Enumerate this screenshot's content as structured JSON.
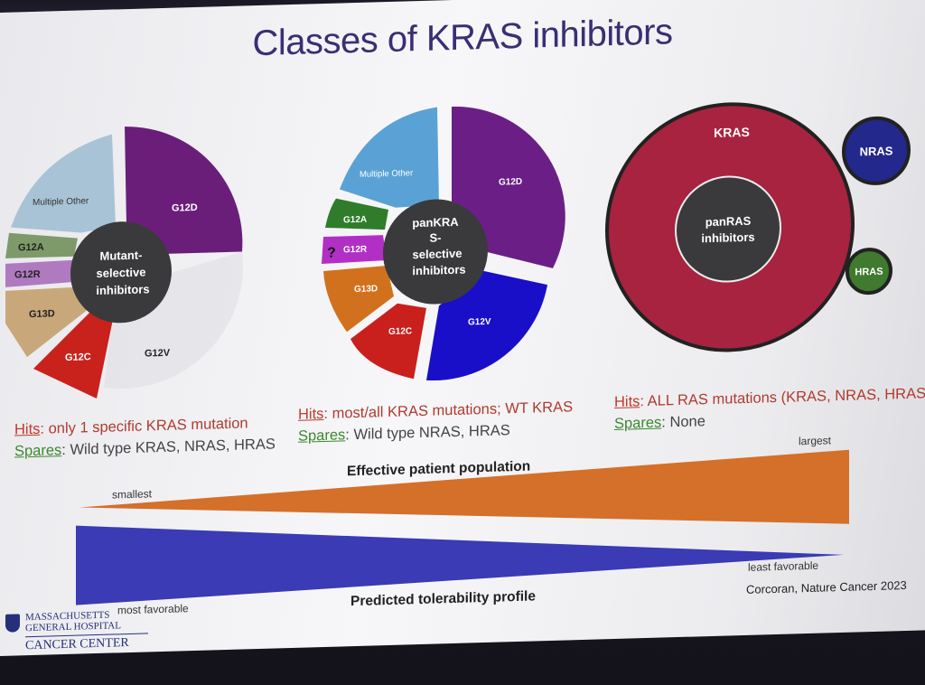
{
  "slide": {
    "title": "Classes of KRAS inhibitors"
  },
  "panel1": {
    "center": [
      "Mutant-",
      "selective",
      "inhibitors"
    ],
    "segments": [
      {
        "label": "G12D",
        "color": "#6a1e7a"
      },
      {
        "label": "G12V",
        "color": "#dcdce2"
      },
      {
        "label": "G12C",
        "color": "#c9221c"
      },
      {
        "label": "G13D",
        "color": "#c8a87a"
      },
      {
        "label": "G12R",
        "color": "#b07ac0"
      },
      {
        "label": "G12A",
        "color": "#7e9a6a"
      },
      {
        "label": "Multiple Other",
        "color": "#a9c3d6"
      }
    ],
    "hits_key": "Hits",
    "hits_value": ": only 1 specific KRAS mutation",
    "spares_key": "Spares",
    "spares_value": ": Wild type KRAS, NRAS, HRAS"
  },
  "panel2": {
    "center": [
      "panKRA",
      "S-",
      "selective",
      "inhibitors"
    ],
    "segments": [
      {
        "label": "G12D",
        "color": "#6b1f86"
      },
      {
        "label": "G12V",
        "color": "#1a0fc8"
      },
      {
        "label": "G12C",
        "color": "#c9201d"
      },
      {
        "label": "G13D",
        "color": "#d2711d"
      },
      {
        "label": "G12R",
        "color": "#b22fc6"
      },
      {
        "label": "G12A",
        "color": "#2f7d2a"
      },
      {
        "label": "Multiple Other",
        "color": "#5aa2d6"
      }
    ],
    "question_mark": "?",
    "hits_key": "Hits",
    "hits_value": ": most/all KRAS mutations; WT KRAS",
    "spares_key": "Spares",
    "spares_value": ": Wild type NRAS, HRAS"
  },
  "panel3": {
    "outer_label": "KRAS",
    "center": [
      "panRAS",
      "inhibitors"
    ],
    "nras": "NRAS",
    "hras": "HRAS",
    "colors": {
      "kras": "#a8233f",
      "nras": "#22288c",
      "hras": "#3f7a2e",
      "center": "#3a3a3c"
    },
    "hits_key": "Hits",
    "hits_value": ": ALL RAS mutations (KRAS, NRAS, HRAS",
    "spares_key": "Spares",
    "spares_value": ": None"
  },
  "population_axis": {
    "label": "Effective patient population",
    "min_label": "smallest",
    "max_label": "largest",
    "color": "#d4702a"
  },
  "tolerability_axis": {
    "label": "Predicted tolerability profile",
    "min_label": "most favorable",
    "max_label": "least favorable",
    "color": "#3b3bb5"
  },
  "footer": {
    "logo_line1": "MASSACHUSETTS",
    "logo_line2": "GENERAL HOSPITAL",
    "logo_line3": "CANCER CENTER",
    "citation": "Corcoran, Nature Cancer 2023"
  }
}
